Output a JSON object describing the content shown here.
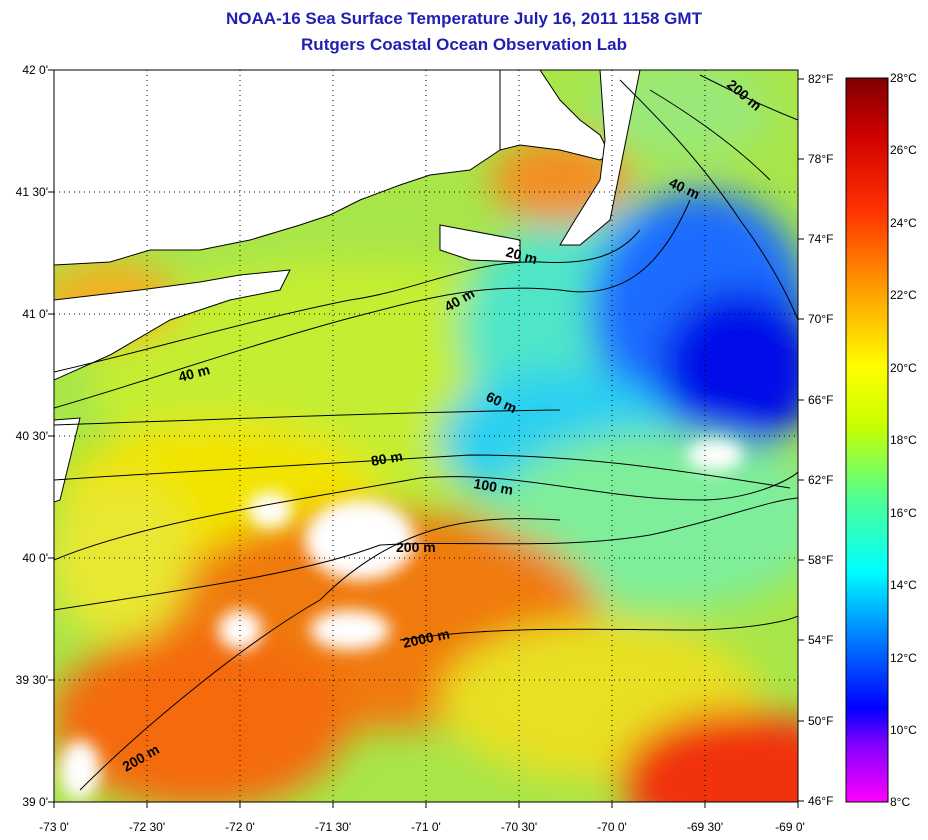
{
  "header": {
    "title": "NOAA-16 Sea Surface Temperature July 16, 2011 1158 GMT",
    "subtitle": "Rutgers Coastal Ocean Observation Lab"
  },
  "map": {
    "lat_ticks": [
      "42 0'",
      "41 30'",
      "41 0'",
      "40 30'",
      "40 0'",
      "39 30'",
      "39 0'"
    ],
    "lon_ticks": [
      "-73 0'",
      "-72 30'",
      "-72 0'",
      "-71 30'",
      "-71 0'",
      "-70 30'",
      "-70 0'",
      "-69 30'",
      "-69 0'"
    ],
    "lat_range": [
      39.0,
      42.0
    ],
    "lon_range": [
      -73.0,
      -69.0
    ],
    "grid": "dotted",
    "depth_contours": [
      "20 m",
      "40 m",
      "40 m",
      "40 m",
      "60 m",
      "80 m",
      "100 m",
      "200 m",
      "200 m",
      "200 m",
      "2000 m"
    ],
    "cloud_mask_color": "#ffffff",
    "land_color": "#ffffff"
  },
  "colorbar": {
    "fahrenheit_ticks": [
      "82°F",
      "78°F",
      "74°F",
      "70°F",
      "66°F",
      "62°F",
      "58°F",
      "54°F",
      "50°F",
      "46°F"
    ],
    "celsius_ticks": [
      "28°C",
      "26°C",
      "24°C",
      "22°C",
      "20°C",
      "18°C",
      "16°C",
      "14°C",
      "12°C",
      "10°C",
      "8°C"
    ],
    "range_c": [
      8,
      28
    ],
    "colors": [
      "#ff00ff",
      "#7f00ff",
      "#0000ff",
      "#0080ff",
      "#00ffff",
      "#40ff80",
      "#c0ff00",
      "#ffff00",
      "#ffa000",
      "#ff3000",
      "#c00000",
      "#800000"
    ]
  }
}
